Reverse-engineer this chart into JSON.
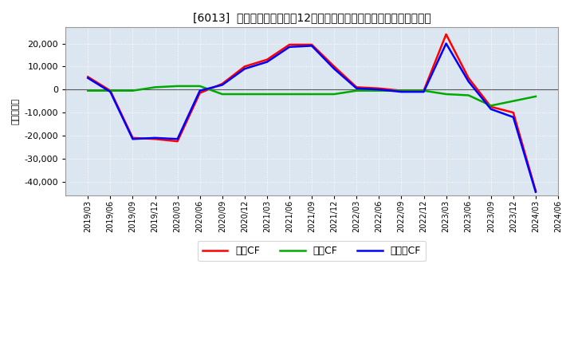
{
  "title": "[6013]  キャッシュフローの12か月移動合計の対前年同期増減額の推移",
  "ylabel": "（百万円）",
  "background_color": "#ffffff",
  "plot_bg_color": "#dce6f0",
  "grid_color": "#ffffff",
  "x_labels": [
    "2019/03",
    "2019/06",
    "2019/09",
    "2019/12",
    "2020/03",
    "2020/06",
    "2020/09",
    "2020/12",
    "2021/03",
    "2021/06",
    "2021/09",
    "2021/12",
    "2022/03",
    "2022/06",
    "2022/09",
    "2022/12",
    "2023/03",
    "2023/06",
    "2023/09",
    "2023/12",
    "2024/03",
    "2024/06"
  ],
  "operating_cf": [
    5500,
    -500,
    -21000,
    -21500,
    -22500,
    -1500,
    2500,
    10000,
    13000,
    19500,
    19500,
    10000,
    1000,
    500,
    -500,
    -500,
    24000,
    5000,
    -7500,
    -10000,
    -44000,
    null
  ],
  "investing_cf": [
    -500,
    -500,
    -500,
    1000,
    1500,
    1500,
    -2000,
    -2000,
    -2000,
    -2000,
    -2000,
    -2000,
    -500,
    -500,
    -500,
    -500,
    -2000,
    -2500,
    -7000,
    -5000,
    -3000,
    null
  ],
  "free_cf": [
    5000,
    -1000,
    -21500,
    -21000,
    -21500,
    -500,
    2000,
    9000,
    12000,
    18500,
    19000,
    9000,
    500,
    0,
    -1000,
    -1000,
    20000,
    3500,
    -8500,
    -12000,
    -44500,
    null
  ],
  "operating_color": "#ff0000",
  "investing_color": "#00aa00",
  "free_color": "#0000ff",
  "ylim": [
    -46000,
    27000
  ],
  "yticks": [
    -40000,
    -30000,
    -20000,
    -10000,
    0,
    10000,
    20000
  ],
  "legend_labels": [
    "営業CF",
    "投資CF",
    "フリーCF"
  ]
}
